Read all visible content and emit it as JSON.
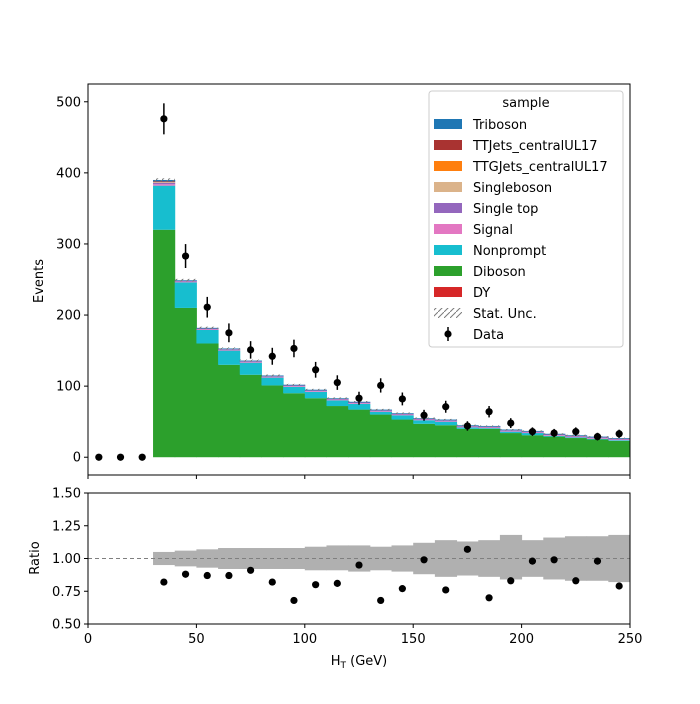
{
  "chart_data": {
    "type": "bar",
    "x_axis": {
      "label_main": "H",
      "label_sub": "T",
      "label_unit": " (GeV)",
      "lim": [
        0,
        250
      ],
      "ticks": [
        "0",
        "50",
        "100",
        "150",
        "200",
        "250"
      ]
    },
    "main_plot": {
      "ylabel": "Events",
      "ylim": [
        -25,
        525
      ],
      "yticks": [
        "0",
        "100",
        "200",
        "300",
        "400",
        "500"
      ],
      "bins": [
        30,
        40,
        50,
        60,
        70,
        80,
        90,
        100,
        110,
        120,
        130,
        140,
        150,
        160,
        170,
        180,
        190,
        200,
        210,
        220,
        230,
        240,
        250
      ],
      "series": [
        {
          "name": "DY",
          "color": "#d62728",
          "values": [
            0,
            0,
            0,
            0,
            0,
            0,
            0,
            0,
            0,
            0,
            0,
            0,
            0,
            0,
            0,
            0,
            0,
            0,
            0,
            0,
            0,
            0
          ]
        },
        {
          "name": "Diboson",
          "color": "#2ca02c",
          "values": [
            320,
            210,
            160,
            130,
            116,
            101,
            90,
            83,
            72,
            67,
            60,
            53,
            47,
            45,
            40,
            40,
            34,
            31,
            29,
            27,
            25,
            23
          ]
        },
        {
          "name": "Nonprompt",
          "color": "#17becf",
          "values": [
            62,
            36,
            19,
            20,
            17,
            11,
            9,
            9,
            8,
            8,
            4,
            6,
            5,
            5,
            2,
            1,
            2,
            3,
            1,
            1,
            1,
            1
          ]
        },
        {
          "name": "Signal",
          "color": "#e377c2",
          "values": [
            2,
            1,
            1,
            1,
            1,
            1,
            1,
            1,
            1,
            1,
            1,
            1,
            1,
            1,
            1,
            1,
            1,
            1,
            1,
            1,
            1,
            1
          ]
        },
        {
          "name": "Single top",
          "color": "#9467bd",
          "values": [
            2,
            1,
            1,
            1,
            1,
            1,
            1,
            1,
            1,
            1,
            1,
            1,
            1,
            1,
            1,
            1,
            1,
            1,
            1,
            1,
            1,
            1
          ]
        },
        {
          "name": "Singleboson",
          "color": "#dbb38a",
          "values": [
            1,
            0,
            0,
            0,
            0,
            0,
            0,
            0,
            0,
            0,
            0,
            0,
            0,
            0,
            0,
            0,
            0,
            0,
            0,
            0,
            0,
            0
          ]
        },
        {
          "name": "TTGJets_centralUL17",
          "color": "#ff7f0e",
          "values": [
            0,
            0,
            0,
            0,
            0,
            0,
            0,
            0,
            0,
            0,
            0,
            0,
            0,
            0,
            0,
            0,
            0,
            0,
            0,
            0,
            0,
            0
          ]
        },
        {
          "name": "TTJets_centralUL17",
          "color": "#a93331",
          "values": [
            1,
            0,
            0,
            0,
            0,
            0,
            0,
            0,
            0,
            0,
            0,
            0,
            0,
            0,
            0,
            0,
            0,
            0,
            0,
            0,
            0,
            0
          ]
        },
        {
          "name": "Triboson",
          "color": "#1f77b4",
          "values": [
            2,
            1,
            1,
            1,
            1,
            1,
            1,
            1,
            1,
            1,
            1,
            1,
            1,
            1,
            1,
            1,
            1,
            1,
            1,
            1,
            1,
            1
          ]
        }
      ],
      "data_points": {
        "name": "Data",
        "x": [
          5,
          15,
          25,
          35,
          45,
          55,
          65,
          75,
          85,
          95,
          105,
          115,
          125,
          135,
          145,
          155,
          165,
          175,
          185,
          195,
          205,
          215,
          225,
          235,
          245
        ],
        "y": [
          0,
          0,
          0,
          476,
          283,
          211,
          175,
          151,
          142,
          153,
          123,
          105,
          83,
          101,
          82,
          59,
          71,
          44,
          64,
          48,
          36,
          34,
          36,
          29,
          33
        ]
      },
      "stat_unc_label": "Stat. Unc."
    },
    "legend": {
      "title": "sample",
      "placement": "top-right",
      "entries": [
        "Triboson",
        "TTJets_centralUL17",
        "TTGJets_centralUL17",
        "Singleboson",
        "Single top",
        "Signal",
        "Nonprompt",
        "Diboson",
        "DY",
        "Stat. Unc.",
        "Data"
      ]
    },
    "ratio_plot": {
      "ylabel": "Ratio",
      "ylim": [
        0.5,
        1.5
      ],
      "yticks": [
        "0.50",
        "0.75",
        "1.00",
        "1.25",
        "1.50"
      ],
      "reference_line": 1.0,
      "unc_band": {
        "low": [
          0.95,
          0.94,
          0.93,
          0.92,
          0.92,
          0.92,
          0.92,
          0.91,
          0.91,
          0.9,
          0.91,
          0.9,
          0.88,
          0.86,
          0.87,
          0.86,
          0.84,
          0.86,
          0.84,
          0.83,
          0.83,
          0.82
        ],
        "high": [
          1.05,
          1.06,
          1.07,
          1.08,
          1.08,
          1.08,
          1.08,
          1.09,
          1.1,
          1.1,
          1.09,
          1.1,
          1.12,
          1.14,
          1.13,
          1.14,
          1.18,
          1.14,
          1.16,
          1.17,
          1.17,
          1.18
        ]
      },
      "points": {
        "x": [
          35,
          45,
          55,
          65,
          75,
          85,
          95,
          105,
          115,
          125,
          135,
          145,
          155,
          165,
          175,
          185,
          195,
          205,
          215,
          225,
          235,
          245
        ],
        "y": [
          0.82,
          0.88,
          0.87,
          0.87,
          0.91,
          0.82,
          0.68,
          0.8,
          0.81,
          0.95,
          0.68,
          0.77,
          0.99,
          0.76,
          1.07,
          0.7,
          0.83,
          0.98,
          0.99,
          0.83,
          0.98,
          0.79
        ]
      }
    }
  }
}
